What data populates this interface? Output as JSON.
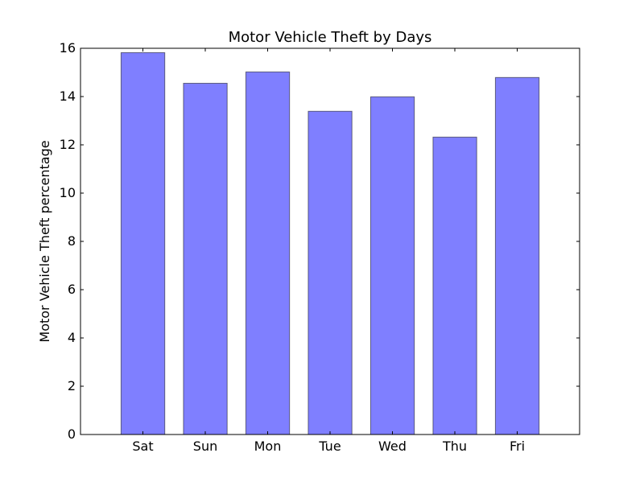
{
  "chart_data": {
    "type": "bar",
    "title": "Motor Vehicle Theft by Days",
    "xlabel": "",
    "ylabel": "Motor Vehicle Theft percentage",
    "categories": [
      "Sat",
      "Sun",
      "Mon",
      "Tue",
      "Wed",
      "Thu",
      "Fri"
    ],
    "values": [
      15.82,
      14.55,
      15.02,
      13.39,
      13.99,
      12.32,
      14.79
    ],
    "ylim": [
      0,
      16
    ],
    "yticks": [
      "0",
      "2",
      "4",
      "6",
      "8",
      "10",
      "12",
      "14",
      "16"
    ],
    "grid": false,
    "bar_color": "#0000ff",
    "legend": "none"
  }
}
